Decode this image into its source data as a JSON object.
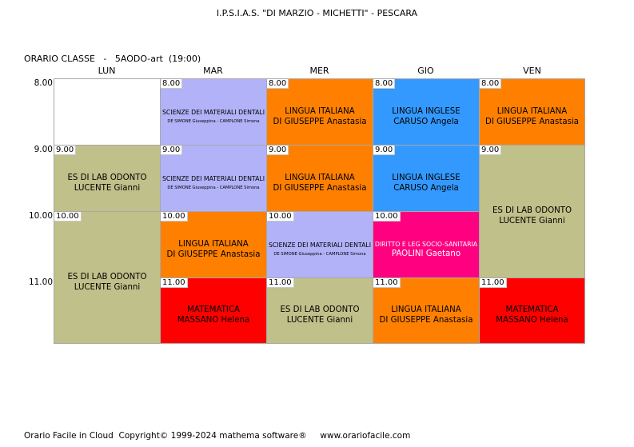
{
  "header": {
    "school": "I.P.S.I.A.S. \"DI MARZIO - MICHETTI\" - PESCARA",
    "class_title": "ORARIO CLASSE   -   5AODO-art  (19:00)"
  },
  "days": [
    "LUN",
    "MAR",
    "MER",
    "GIO",
    "VEN"
  ],
  "hours": [
    "8.00",
    "9.00",
    "10.00",
    "11.00"
  ],
  "colors": {
    "empty": "#ffffff",
    "lab_odonto": "#c0c08a",
    "scienze": "#b2b2f8",
    "italiano": "#ff8000",
    "inglese": "#3399ff",
    "diritto": "#ff0080",
    "matematica": "#ff0000"
  },
  "cells": [
    {
      "time": "",
      "subject": "",
      "teacher": "",
      "color": "#ffffff"
    },
    {
      "time": "9.00",
      "subject": "ES  DI LAB ODONTO",
      "teacher": "LUCENTE Gianni",
      "color": "#c0c08a"
    },
    {
      "time": "10.00",
      "subject": "ES  DI LAB ODONTO",
      "teacher": "LUCENTE Gianni",
      "color": "#c0c08a"
    },
    {
      "time": "8.00",
      "subject": "SCIENZE DEI MATERIALI DENTALI",
      "teacher": "DE SIMONE Giuseppina - CAMPLONE Simona",
      "color": "#b2b2f8"
    },
    {
      "time": "9.00",
      "subject": "SCIENZE DEI MATERIALI DENTALI",
      "teacher": "DE SIMONE Giuseppina - CAMPLONE Simona",
      "color": "#b2b2f8"
    },
    {
      "time": "10.00",
      "subject": "LINGUA ITALIANA",
      "teacher": "DI GIUSEPPE Anastasia",
      "color": "#ff8000"
    },
    {
      "time": "11.00",
      "subject": "MATEMATICA",
      "teacher": "MASSANO Helena",
      "color": "#ff0000"
    },
    {
      "time": "8.00",
      "subject": "LINGUA ITALIANA",
      "teacher": "DI GIUSEPPE Anastasia",
      "color": "#ff8000"
    },
    {
      "time": "9.00",
      "subject": "LINGUA ITALIANA",
      "teacher": "DI GIUSEPPE Anastasia",
      "color": "#ff8000"
    },
    {
      "time": "10.00",
      "subject": "SCIENZE DEI MATERIALI DENTALI",
      "teacher": "DE SIMONE Giuseppina - CAMPLONE Simona",
      "color": "#b2b2f8"
    },
    {
      "time": "11.00",
      "subject": "ES  DI LAB ODONTO",
      "teacher": "LUCENTE Gianni",
      "color": "#c0c08a"
    },
    {
      "time": "8.00",
      "subject": "LINGUA INGLESE",
      "teacher": "CARUSO Angela",
      "color": "#3399ff"
    },
    {
      "time": "9.00",
      "subject": "LINGUA INGLESE",
      "teacher": "CARUSO Angela",
      "color": "#3399ff"
    },
    {
      "time": "10.00",
      "subject": "DIRITTO E LEG SOCIO-SANITARIA",
      "teacher": "PAOLINI Gaetano",
      "color": "#ff0080",
      "fg": "#ffffff"
    },
    {
      "time": "11.00",
      "subject": "LINGUA ITALIANA",
      "teacher": "DI GIUSEPPE Anastasia",
      "color": "#ff8000"
    },
    {
      "time": "8.00",
      "subject": "LINGUA ITALIANA",
      "teacher": "DI GIUSEPPE Anastasia",
      "color": "#ff8000"
    },
    {
      "time": "9.00",
      "subject": "ES  DI LAB ODONTO",
      "teacher": "LUCENTE Gianni",
      "color": "#c0c08a"
    },
    {
      "time": "11.00",
      "subject": "MATEMATICA",
      "teacher": "MASSANO Helena",
      "color": "#ff0000"
    }
  ],
  "footer": "Orario Facile in Cloud  Copyright© 1999-2024 mathema software®     www.orariofacile.com"
}
